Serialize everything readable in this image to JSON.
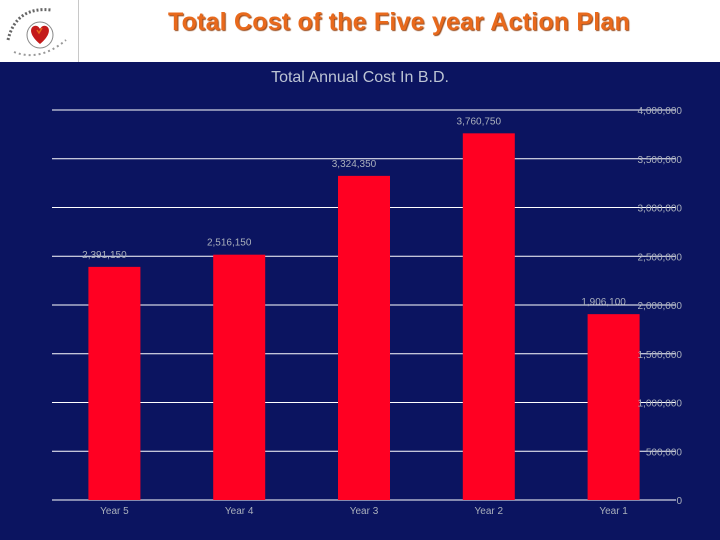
{
  "slide": {
    "title": "Total Cost of the Five year Action Plan"
  },
  "logo": {
    "icon": "organization-logo-icon",
    "colors": [
      "#c41a1a",
      "#e8691c",
      "#666666"
    ]
  },
  "colors": {
    "background": "#0b1460",
    "bar": "#ff0022",
    "title": "#e8691c",
    "text": "#aab0bc"
  },
  "chart_data": {
    "type": "bar",
    "title": "Total  Annual Cost In B.D.",
    "categories": [
      "Year 5",
      "Year 4",
      "Year 3",
      "Year 2",
      "Year 1"
    ],
    "values": [
      2391150,
      2516150,
      3324350,
      3760750,
      1906100
    ],
    "data_labels": [
      "2,391,150",
      "2,516,150",
      "3,324,350",
      "3,760,750",
      "1,906,100"
    ],
    "ylim": [
      0,
      4000000
    ],
    "yticks": [
      0,
      500000,
      1000000,
      1500000,
      2000000,
      2500000,
      3000000,
      3500000,
      4000000
    ],
    "ytick_labels": [
      "0",
      "500,000",
      "1,000,000",
      "1,500,000",
      "2,000,000",
      "2,500,000",
      "3,000,000",
      "3,500,000",
      "4,000,000"
    ],
    "y_axis_side": "right",
    "grid": true,
    "legend": "none"
  }
}
